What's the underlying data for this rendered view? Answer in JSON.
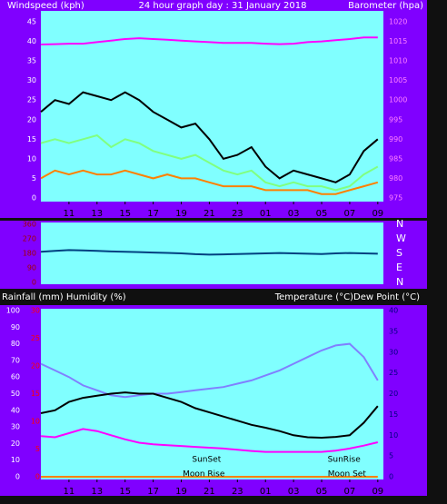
{
  "chart_data": [
    {
      "type": "line",
      "title": "24 hour graph day : 31 January 2018",
      "y_label": "Windspeed (kph)",
      "y2_label": "Barometer (hpa)",
      "x": [
        0,
        1,
        2,
        3,
        4,
        5,
        6,
        7,
        8,
        9,
        10,
        11,
        12,
        13,
        14,
        15,
        16,
        17,
        18,
        19,
        20,
        21,
        22,
        23,
        24
      ],
      "xlim": [
        0,
        24.4
      ],
      "xticks": [
        {
          "value": 2,
          "label": "11"
        },
        {
          "value": 4,
          "label": "13"
        },
        {
          "value": 6,
          "label": "15"
        },
        {
          "value": 8,
          "label": "17"
        },
        {
          "value": 10,
          "label": "19"
        },
        {
          "value": 12,
          "label": "21"
        },
        {
          "value": 14,
          "label": "23"
        },
        {
          "value": 16,
          "label": "01"
        },
        {
          "value": 18,
          "label": "03"
        },
        {
          "value": 20,
          "label": "05"
        },
        {
          "value": 22,
          "label": "07"
        },
        {
          "value": 24,
          "label": "09"
        }
      ],
      "ylim": [
        0,
        45
      ],
      "yticks": [
        0,
        5,
        10,
        15,
        20,
        25,
        30,
        35,
        40,
        45
      ],
      "y2lim": [
        975,
        1020
      ],
      "y2ticks": [
        975,
        980,
        985,
        990,
        995,
        1000,
        1005,
        1010,
        1015,
        1020
      ],
      "grid": false,
      "series": [
        {
          "color": "#000000",
          "values": [
            22,
            25,
            24,
            27,
            26,
            25,
            27,
            25,
            22,
            20,
            18,
            19,
            15,
            10,
            11,
            13,
            8,
            5,
            7,
            6,
            5,
            4,
            6,
            12,
            15
          ]
        },
        {
          "color": "#80ff80",
          "values": [
            14,
            15,
            14,
            15,
            16,
            13,
            15,
            14,
            12,
            11,
            10,
            11,
            9,
            7,
            6,
            7,
            4,
            3,
            4,
            3,
            3,
            2,
            3,
            6,
            8
          ]
        },
        {
          "color": "#ff8000",
          "values": [
            5,
            7,
            6,
            7,
            6,
            6,
            7,
            6,
            5,
            6,
            5,
            5,
            4,
            3,
            3,
            3,
            2,
            2,
            2,
            2,
            1,
            1,
            2,
            3,
            4
          ]
        },
        {
          "color": "#ff00ff",
          "axis": "y2",
          "values": [
            1014.2,
            1014.3,
            1014.4,
            1014.4,
            1014.8,
            1015.2,
            1015.6,
            1015.8,
            1015.6,
            1015.4,
            1015.2,
            1015.0,
            1014.8,
            1014.6,
            1014.6,
            1014.6,
            1014.4,
            1014.3,
            1014.4,
            1014.8,
            1015.0,
            1015.3,
            1015.6,
            1016,
            1016
          ]
        }
      ]
    },
    {
      "type": "line",
      "x": [
        0,
        1,
        2,
        3,
        4,
        5,
        6,
        7,
        8,
        9,
        10,
        11,
        12,
        13,
        14,
        15,
        16,
        17,
        18,
        19,
        20,
        21,
        22,
        23,
        24
      ],
      "xlim": [
        0,
        24.4
      ],
      "ylim": [
        0,
        360
      ],
      "yticks": [
        0,
        90,
        180,
        270,
        360
      ],
      "y2lim": [
        0,
        360
      ],
      "y2ticks": [
        {
          "value": 0,
          "label": "N"
        },
        {
          "value": 90,
          "label": "E"
        },
        {
          "value": 180,
          "label": "S"
        },
        {
          "value": 270,
          "label": "W"
        },
        {
          "value": 360,
          "label": "N"
        }
      ],
      "grid": false,
      "series": [
        {
          "color": "#004080",
          "values": [
            190,
            195,
            200,
            198,
            195,
            192,
            190,
            188,
            185,
            183,
            180,
            175,
            172,
            174,
            176,
            178,
            180,
            182,
            180,
            178,
            176,
            180,
            182,
            180,
            178
          ]
        }
      ]
    },
    {
      "type": "line",
      "y_label": "Rainfall (mm)  Humidity (%)",
      "y2_label": "Temperature (°C)Dew Point (°C)",
      "x": [
        0,
        1,
        2,
        3,
        4,
        5,
        6,
        7,
        8,
        9,
        10,
        11,
        12,
        13,
        14,
        15,
        16,
        17,
        18,
        19,
        20,
        21,
        22,
        23,
        24
      ],
      "xlim": [
        0,
        24.4
      ],
      "xticks": [
        {
          "value": 2,
          "label": "11"
        },
        {
          "value": 4,
          "label": "13"
        },
        {
          "value": 6,
          "label": "15"
        },
        {
          "value": 8,
          "label": "17"
        },
        {
          "value": 10,
          "label": "19"
        },
        {
          "value": 12,
          "label": "21"
        },
        {
          "value": 14,
          "label": "23"
        },
        {
          "value": 16,
          "label": "01"
        },
        {
          "value": 18,
          "label": "03"
        },
        {
          "value": 20,
          "label": "05"
        },
        {
          "value": 22,
          "label": "07"
        },
        {
          "value": 24,
          "label": "09"
        }
      ],
      "ylim": [
        0,
        100
      ],
      "yticks": [
        0,
        10,
        20,
        30,
        40,
        50,
        60,
        70,
        80,
        90,
        100
      ],
      "y3lim": [
        0,
        30
      ],
      "y3ticks": [
        0,
        5,
        10,
        15,
        20,
        25,
        30
      ],
      "y2lim": [
        0,
        40
      ],
      "y2ticks": [
        0,
        5,
        10,
        15,
        20,
        25,
        30,
        35,
        40
      ],
      "grid": false,
      "series": [
        {
          "color": "#8080ff",
          "values": [
            68,
            64,
            60,
            55,
            52,
            49,
            48,
            49,
            50,
            50,
            51,
            52,
            53,
            54,
            56,
            58,
            61,
            64,
            68,
            72,
            76,
            79,
            80,
            72,
            58
          ]
        },
        {
          "color": "#000000",
          "axis": "y2",
          "values": [
            15.3,
            16,
            18,
            19,
            19.5,
            20,
            20.3,
            20,
            20,
            19,
            18,
            16.5,
            15.5,
            14.5,
            13.5,
            12.5,
            11.8,
            11,
            10,
            9.5,
            9.4,
            9.6,
            10,
            13,
            17
          ]
        },
        {
          "color": "#ff00ff",
          "axis": "y2",
          "values": [
            9.8,
            9.5,
            10.5,
            11.5,
            11,
            10,
            9,
            8.2,
            7.8,
            7.6,
            7.4,
            7.2,
            7,
            6.8,
            6.5,
            6.2,
            6,
            6,
            6,
            6,
            6,
            6.3,
            6.8,
            7.5,
            8.3
          ]
        },
        {
          "color": "#ff8000",
          "axis": "y3",
          "values": [
            0,
            0,
            0,
            0,
            0,
            0,
            0,
            0,
            0,
            0,
            0,
            0,
            0,
            0,
            0,
            0,
            0,
            0,
            0,
            0,
            0,
            0,
            0,
            0,
            0
          ]
        }
      ],
      "annotations": [
        {
          "text": "SunSet",
          "x": 11.8
        },
        {
          "text": "SunRise",
          "x": 21.6
        },
        {
          "text": "Moon Rise",
          "x": 11.6
        },
        {
          "text": "Moon Set",
          "x": 21.8
        }
      ]
    }
  ]
}
